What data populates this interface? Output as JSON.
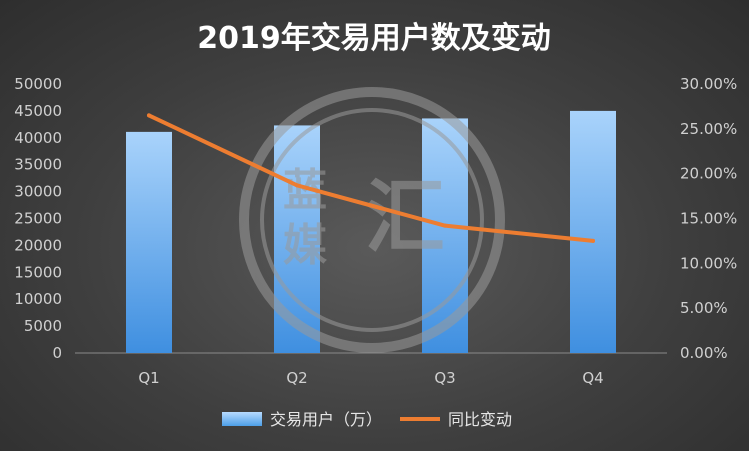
{
  "chart_data": {
    "type": "bar",
    "title": "2019年交易用户数及变动",
    "categories": [
      "Q1",
      "Q2",
      "Q3",
      "Q4"
    ],
    "series": [
      {
        "name": "交易用户（万）",
        "type": "bar",
        "axis": "left",
        "values": [
          41100,
          42300,
          43600,
          45000
        ]
      },
      {
        "name": "同比变动",
        "type": "line",
        "axis": "right",
        "values": [
          0.265,
          0.187,
          0.142,
          0.125
        ]
      }
    ],
    "y_left": {
      "min": 0,
      "max": 50000,
      "step": 5000,
      "tick_labels": [
        "0",
        "5000",
        "10000",
        "15000",
        "20000",
        "25000",
        "30000",
        "35000",
        "40000",
        "45000",
        "50000"
      ]
    },
    "y_right": {
      "min": 0,
      "max": 0.3,
      "step": 0.05,
      "tick_labels": [
        "0.00%",
        "5.00%",
        "10.00%",
        "15.00%",
        "20.00%",
        "25.00%",
        "30.00%"
      ]
    },
    "grid": false,
    "legend_position": "bottom",
    "colors": {
      "bar": "#4d9fe8",
      "line": "#ed7d31"
    }
  },
  "watermark": {
    "text_1": "蓝",
    "text_2": "媒",
    "text_3": "汇"
  }
}
